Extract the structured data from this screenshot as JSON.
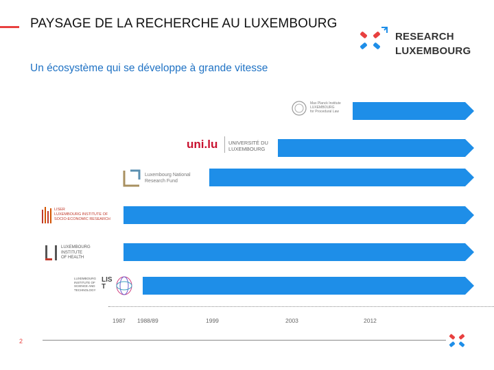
{
  "slide": {
    "title": "PAYSAGE DE LA RECHERCHE AU LUXEMBOURG",
    "subtitle": "Un écosystème qui se développe à grande vitesse",
    "page_number": "2"
  },
  "brand": {
    "line1": "RESEARCH",
    "line2": "LUXEMBOURG",
    "colors": {
      "red": "#e8403f",
      "blue": "#1e8ee8"
    }
  },
  "timeline": {
    "years": [
      "1987",
      "1988/89",
      "1999",
      "2003",
      "2012"
    ],
    "bar_color": "#1e8ee8",
    "institutions": [
      {
        "logo_icon": "max-planck-logo-icon",
        "logo_lines": [
          "Max Planck Institute",
          "LUXEMBOURG",
          "for Procedural Law"
        ]
      },
      {
        "logo_icon": "uni-lu-logo-icon",
        "logo_word": "uni.lu",
        "logo_lines": [
          "UNIVERSITÉ DU",
          "LUXEMBOURG"
        ]
      },
      {
        "logo_icon": "fnr-logo-icon",
        "logo_lines": [
          "Luxembourg National",
          "Research Fund"
        ]
      },
      {
        "logo_icon": "liser-logo-icon",
        "logo_lines": [
          "LISER",
          "LUXEMBOURG INSTITUTE OF",
          "SOCIO-ECONOMIC RESEARCH"
        ]
      },
      {
        "logo_icon": "lih-logo-icon",
        "logo_lines": [
          "LUXEMBOURG",
          "INSTITUTE",
          "OF HEALTH"
        ]
      },
      {
        "logo_icon": "list-logo-icon",
        "logo_word": "LIST",
        "logo_lines": [
          "LUXEMBOURG",
          "INSTITUTE OF",
          "SCIENCE AND",
          "TECHNOLOGY"
        ]
      }
    ]
  }
}
